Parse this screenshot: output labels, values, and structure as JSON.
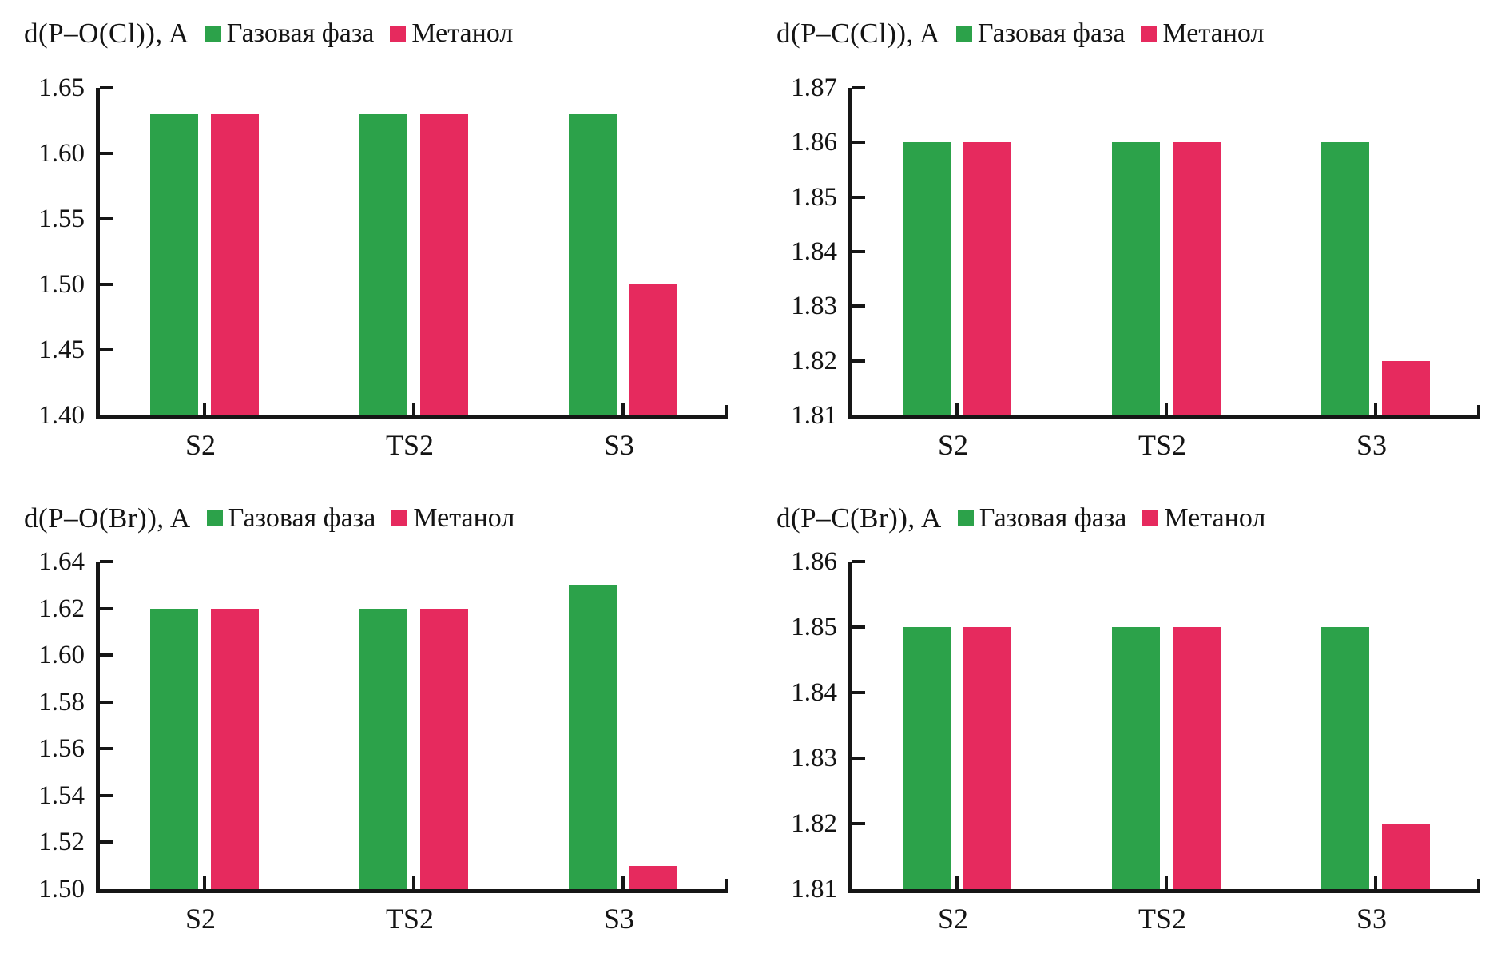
{
  "colors": {
    "gas": "#2ca24a",
    "methanol": "#e62a5e",
    "axis": "#161616",
    "background": "#ffffff"
  },
  "legend": {
    "gas_label": "Газовая фаза",
    "methanol_label": "Метанол"
  },
  "chart_data": [
    {
      "type": "bar",
      "title": "d(P–O(Cl)), A",
      "categories": [
        "S2",
        "TS2",
        "S3"
      ],
      "series": [
        {
          "name": "Газовая фаза",
          "color_key": "gas",
          "values": [
            1.63,
            1.63,
            1.63
          ]
        },
        {
          "name": "Метанол",
          "color_key": "methanol",
          "values": [
            1.63,
            1.63,
            1.5
          ]
        }
      ],
      "ylim": [
        1.4,
        1.65
      ],
      "ystep": 0.05,
      "ytick_labels": [
        "1.40",
        "1.45",
        "1.50",
        "1.55",
        "1.60",
        "1.65"
      ],
      "grid": "off",
      "legend_position": "top"
    },
    {
      "type": "bar",
      "title": "d(P–C(Cl)), A",
      "categories": [
        "S2",
        "TS2",
        "S3"
      ],
      "series": [
        {
          "name": "Газовая фаза",
          "color_key": "gas",
          "values": [
            1.86,
            1.86,
            1.86
          ]
        },
        {
          "name": "Метанол",
          "color_key": "methanol",
          "values": [
            1.86,
            1.86,
            1.82
          ]
        }
      ],
      "ylim": [
        1.81,
        1.87
      ],
      "ystep": 0.01,
      "ytick_labels": [
        "1.81",
        "1.82",
        "1.83",
        "1.84",
        "1.85",
        "1.86",
        "1.87"
      ],
      "grid": "off",
      "legend_position": "top"
    },
    {
      "type": "bar",
      "title": "d(P–O(Br)), A",
      "categories": [
        "S2",
        "TS2",
        "S3"
      ],
      "series": [
        {
          "name": "Газовая фаза",
          "color_key": "gas",
          "values": [
            1.62,
            1.62,
            1.63
          ]
        },
        {
          "name": "Метанол",
          "color_key": "methanol",
          "values": [
            1.62,
            1.62,
            1.51
          ]
        }
      ],
      "ylim": [
        1.5,
        1.64
      ],
      "ystep": 0.02,
      "ytick_labels": [
        "1.50",
        "1.52",
        "1.54",
        "1.56",
        "1.58",
        "1.60",
        "1.62",
        "1.64"
      ],
      "grid": "off",
      "legend_position": "top"
    },
    {
      "type": "bar",
      "title": "d(P–C(Br)), A",
      "categories": [
        "S2",
        "TS2",
        "S3"
      ],
      "series": [
        {
          "name": "Газовая фаза",
          "color_key": "gas",
          "values": [
            1.85,
            1.85,
            1.85
          ]
        },
        {
          "name": "Метанол",
          "color_key": "methanol",
          "values": [
            1.85,
            1.85,
            1.82
          ]
        }
      ],
      "ylim": [
        1.81,
        1.86
      ],
      "ystep": 0.01,
      "ytick_labels": [
        "1.81",
        "1.82",
        "1.83",
        "1.84",
        "1.85",
        "1.86"
      ],
      "grid": "off",
      "legend_position": "top"
    }
  ]
}
